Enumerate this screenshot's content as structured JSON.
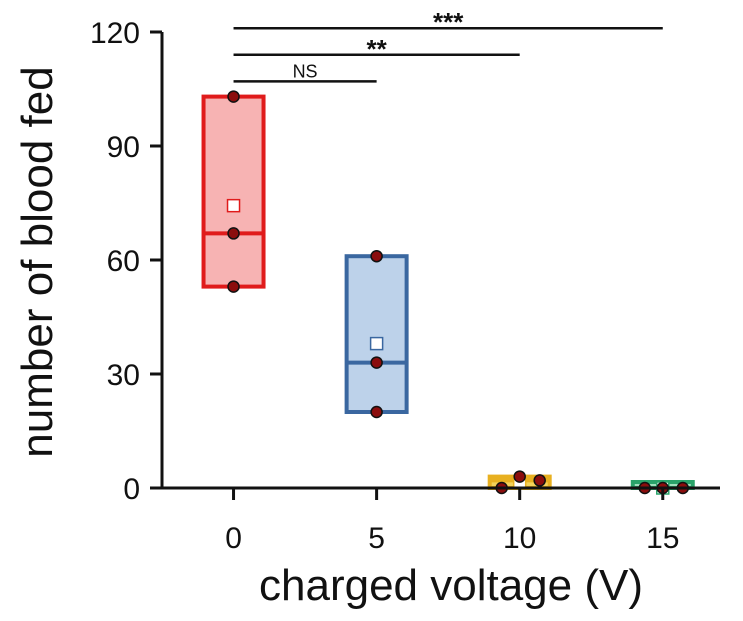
{
  "chart_data": {
    "type": "box",
    "title": "",
    "xlabel": "charged voltage (V)",
    "ylabel": "number of blood fed",
    "categories": [
      "0",
      "5",
      "10",
      "15"
    ],
    "x_positions": [
      0,
      5,
      10,
      15
    ],
    "xlim": [
      -2.5,
      17
    ],
    "ylim": [
      0,
      120
    ],
    "yticks": [
      0,
      30,
      60,
      90,
      120
    ],
    "grid": false,
    "legend": "none",
    "boxes": [
      {
        "category": "0",
        "min": 53,
        "median": 67,
        "max": 103,
        "mean": 74.3,
        "points": [
          53,
          67,
          103
        ],
        "color": "#e01b1b",
        "fill": "#f7b3b3"
      },
      {
        "category": "5",
        "min": 20,
        "median": 33,
        "max": 61,
        "mean": 38,
        "points": [
          20,
          33,
          61
        ],
        "color": "#3a67a0",
        "fill": "#bdd2ea"
      },
      {
        "category": "10",
        "min": 0,
        "median": 2,
        "max": 3,
        "mean": 1.7,
        "points": [
          3,
          0,
          2
        ],
        "color": "#e8b020",
        "fill": "#f3d15a"
      },
      {
        "category": "15",
        "min": 0,
        "median": 0,
        "max": 0,
        "mean": 0,
        "points": [
          0,
          0,
          0
        ],
        "color": "#2aa36a",
        "fill": "#9fe0bd"
      }
    ],
    "point_color": "#8b0d0d",
    "significance": [
      {
        "from": "0",
        "to": "5",
        "label": "NS",
        "level": 107
      },
      {
        "from": "0",
        "to": "10",
        "label": "**",
        "level": 114
      },
      {
        "from": "0",
        "to": "15",
        "label": "***",
        "level": 121
      }
    ]
  }
}
